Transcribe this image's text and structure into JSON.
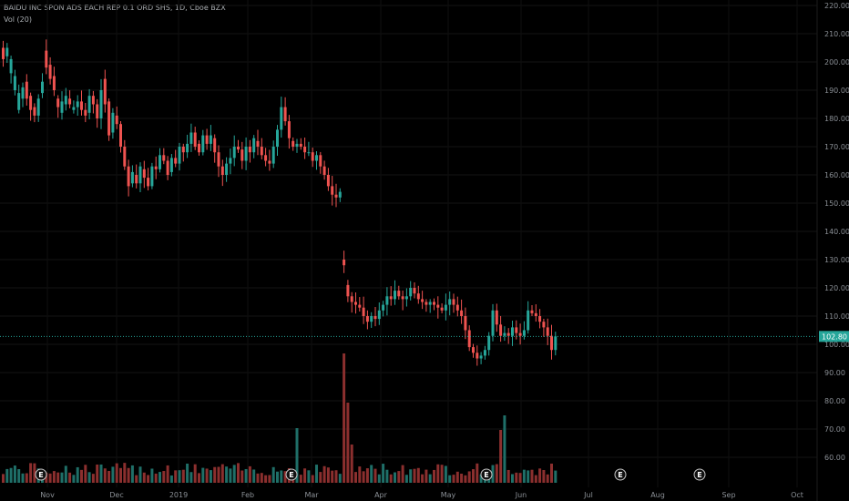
{
  "header": {
    "title": "BAIDU INC SPON ADS EACH REP 0.1 ORD SHS, 1D, Cboe BZX",
    "volume_label": "Vol (20)"
  },
  "chart_data": {
    "type": "candlestick",
    "symbol": "BAIDU INC SPON ADS EACH REP 0.1 ORD SHS",
    "interval": "1D",
    "exchange": "Cboe BZX",
    "price_axis": {
      "position": "right",
      "ticks": [
        "220.00",
        "210.00",
        "200.00",
        "190.00",
        "180.00",
        "170.00",
        "160.00",
        "150.00",
        "140.00",
        "130.00",
        "120.00",
        "110.00",
        "100.00",
        "90.00",
        "80.00",
        "70.00",
        "60.00"
      ],
      "range": [
        55,
        225
      ]
    },
    "time_axis": {
      "labels": [
        "Nov",
        "Dec",
        "2019",
        "Feb",
        "Mar",
        "Apr",
        "May",
        "Jun",
        "Jul",
        "Aug",
        "Sep",
        "Oct"
      ]
    },
    "current_price": "102.80",
    "colors": {
      "up": "#26a69a",
      "down": "#ef5350",
      "price_line": "#26a69a",
      "background": "#000000"
    },
    "earnings_markers": [
      "E",
      "E",
      "E",
      "E",
      "E"
    ],
    "series": [
      {
        "name": "Price",
        "close_path": [
          [
            205,
            201
          ],
          [
            202,
            205
          ],
          [
            196,
            201
          ],
          [
            190,
            195
          ],
          [
            183,
            189
          ],
          [
            187,
            191
          ],
          [
            193,
            187
          ],
          [
            188,
            183
          ],
          [
            184,
            181
          ],
          [
            181,
            187
          ],
          [
            189,
            193
          ],
          [
            204,
            198
          ],
          [
            199,
            194
          ],
          [
            195,
            190
          ],
          [
            187,
            184
          ],
          [
            182,
            186
          ],
          [
            185,
            188
          ],
          [
            187,
            185
          ],
          [
            183,
            184
          ],
          [
            184,
            186
          ],
          [
            186,
            183
          ],
          [
            183,
            181
          ],
          [
            182,
            188
          ],
          [
            188,
            185
          ],
          [
            185,
            180
          ],
          [
            180,
            190
          ],
          [
            194,
            185
          ],
          [
            186,
            174
          ],
          [
            175,
            182
          ],
          [
            181,
            178
          ],
          [
            178,
            170
          ],
          [
            170,
            163
          ],
          [
            163,
            156
          ],
          [
            157,
            161
          ],
          [
            160,
            157
          ],
          [
            157,
            163
          ],
          [
            162,
            159
          ],
          [
            159,
            156
          ],
          [
            156,
            163
          ],
          [
            163,
            162
          ],
          [
            162,
            167
          ],
          [
            167,
            165
          ],
          [
            165,
            160
          ],
          [
            161,
            166
          ],
          [
            166,
            164
          ],
          [
            164,
            170
          ],
          [
            170,
            168
          ],
          [
            168,
            171
          ],
          [
            171,
            175
          ],
          [
            175,
            170
          ],
          [
            171,
            168
          ],
          [
            168,
            174
          ],
          [
            174,
            171
          ],
          [
            171,
            174
          ],
          [
            173,
            168
          ],
          [
            168,
            163
          ],
          [
            163,
            160
          ],
          [
            160,
            164
          ],
          [
            164,
            166
          ],
          [
            166,
            170
          ],
          [
            170,
            169
          ],
          [
            169,
            165
          ],
          [
            165,
            170
          ],
          [
            170,
            168
          ],
          [
            168,
            173
          ],
          [
            172,
            170
          ],
          [
            170,
            167
          ],
          [
            167,
            165
          ],
          [
            165,
            164
          ],
          [
            164,
            170
          ],
          [
            170,
            176
          ],
          [
            176,
            184
          ],
          [
            184,
            179
          ],
          [
            179,
            173
          ],
          [
            172,
            170
          ],
          [
            170,
            171
          ],
          [
            171,
            170
          ],
          [
            170,
            168
          ],
          [
            168,
            168
          ],
          [
            168,
            165
          ],
          [
            165,
            167
          ],
          [
            167,
            163
          ],
          [
            163,
            160
          ],
          [
            160,
            156
          ],
          [
            156,
            153
          ],
          [
            153,
            152
          ],
          [
            152,
            154
          ],
          [
            130,
            128
          ],
          [
            121,
            117
          ],
          [
            117,
            115
          ],
          [
            115,
            114
          ],
          [
            114,
            113
          ],
          [
            113,
            110
          ],
          [
            110,
            108
          ],
          [
            108,
            110
          ],
          [
            110,
            109
          ],
          [
            109,
            112
          ],
          [
            112,
            114
          ],
          [
            114,
            117
          ],
          [
            117,
            116
          ],
          [
            116,
            119
          ],
          [
            119,
            117
          ],
          [
            117,
            116
          ],
          [
            116,
            117
          ],
          [
            117,
            120
          ],
          [
            120,
            118
          ],
          [
            118,
            116
          ],
          [
            116,
            115
          ],
          [
            115,
            114
          ],
          [
            114,
            115
          ],
          [
            115,
            114
          ],
          [
            114,
            113
          ],
          [
            113,
            112
          ],
          [
            112,
            114
          ],
          [
            114,
            116
          ],
          [
            116,
            114
          ],
          [
            114,
            112
          ],
          [
            112,
            110
          ],
          [
            110,
            105
          ],
          [
            105,
            99
          ],
          [
            99,
            97
          ],
          [
            97,
            95
          ],
          [
            95,
            96
          ],
          [
            96,
            98
          ],
          [
            98,
            103
          ],
          [
            103,
            112
          ],
          [
            112,
            107
          ],
          [
            107,
            103
          ],
          [
            103,
            104
          ],
          [
            104,
            103
          ],
          [
            103,
            106
          ],
          [
            106,
            104
          ],
          [
            104,
            103
          ],
          [
            103,
            105
          ],
          [
            105,
            112
          ],
          [
            112,
            111
          ],
          [
            111,
            110
          ],
          [
            110,
            108
          ],
          [
            108,
            106
          ],
          [
            106,
            103
          ],
          [
            103,
            98
          ],
          [
            98,
            102.8
          ]
        ]
      }
    ]
  }
}
